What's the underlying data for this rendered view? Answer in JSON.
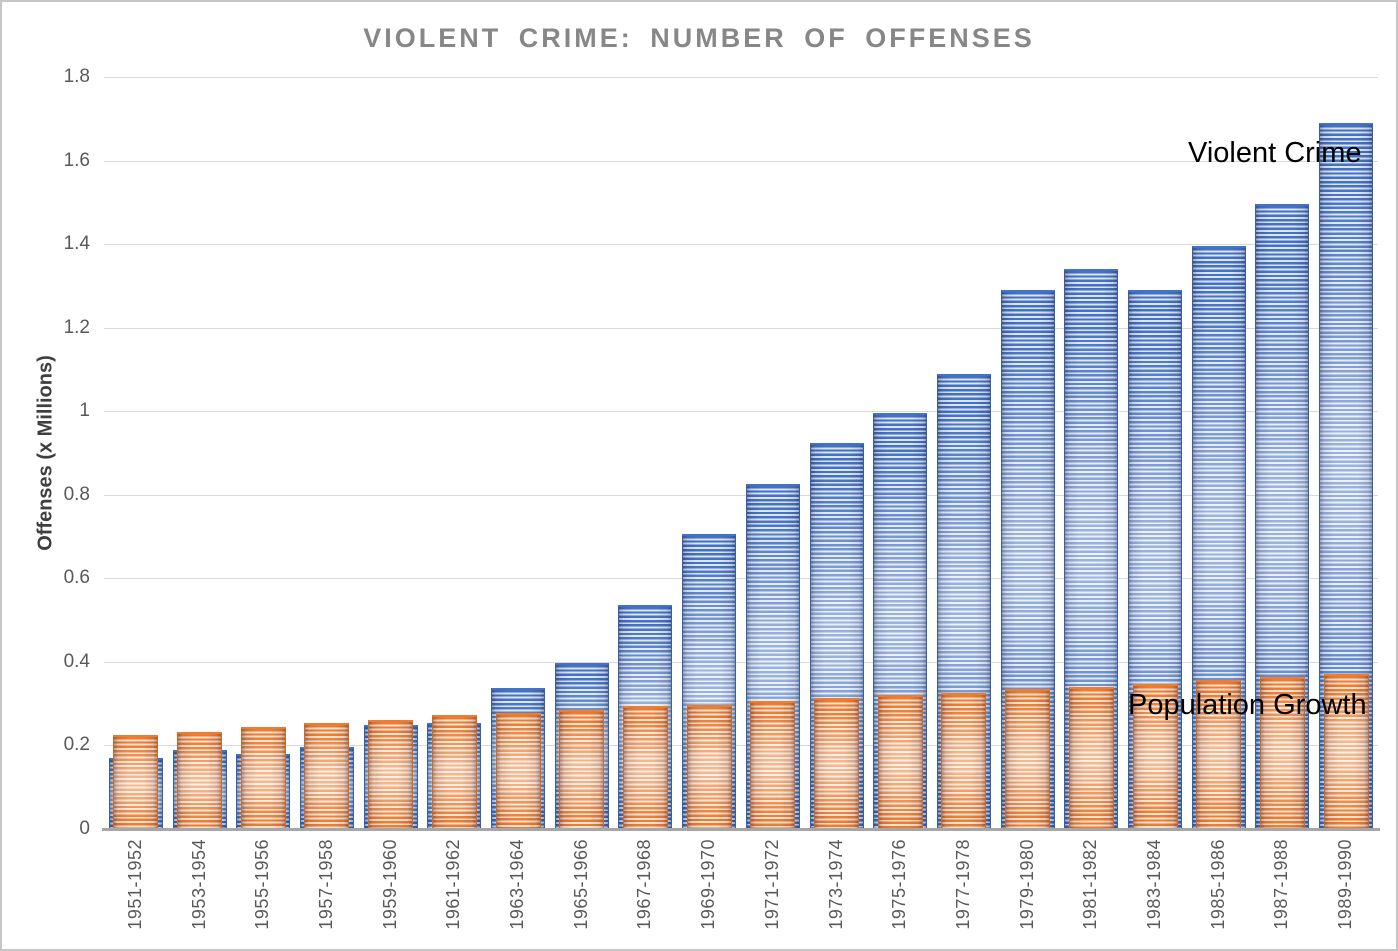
{
  "chart_data": {
    "type": "bar",
    "title": "VIOLENT CRIME: NUMBER OF OFFENSES",
    "ylabel": "Offenses (x Millions)",
    "xlabel": "",
    "categories": [
      "1951-1952",
      "1953-1954",
      "1955-1956",
      "1957-1958",
      "1959-1960",
      "1961-1962",
      "1963-1964",
      "1965-1966",
      "1967-1968",
      "1969-1970",
      "1971-1972",
      "1973-1974",
      "1975-1976",
      "1977-1978",
      "1979-1980",
      "1981-1982",
      "1983-1984",
      "1985-1986",
      "1987-1988",
      "1989-1990"
    ],
    "series": [
      {
        "name": "Violent Crime",
        "color": "#4472C4",
        "stripe_color": "#DCE6F5",
        "values": [
          0.17,
          0.19,
          0.18,
          0.196,
          0.25,
          0.254,
          0.338,
          0.398,
          0.535,
          0.705,
          0.825,
          0.925,
          0.995,
          1.09,
          1.29,
          1.34,
          1.29,
          1.395,
          1.495,
          1.69
        ]
      },
      {
        "name": "Population Growth",
        "color": "#ED7D31",
        "stripe_color": "#FBE3D2",
        "values": [
          0.225,
          0.232,
          0.244,
          0.254,
          0.262,
          0.272,
          0.278,
          0.286,
          0.294,
          0.298,
          0.306,
          0.314,
          0.32,
          0.326,
          0.334,
          0.341,
          0.348,
          0.356,
          0.365,
          0.372
        ]
      }
    ],
    "ylim": [
      0,
      1.8
    ],
    "ytick_step": 0.2,
    "ytick_labels": [
      "0",
      "0.2",
      "0.4",
      "0.6",
      "0.8",
      "1",
      "1.2",
      "1.4",
      "1.6",
      "1.8"
    ],
    "grid": true,
    "bar_layout": "overlapped",
    "legend_position": "none",
    "annotations": [
      {
        "text": "Violent Crime",
        "color": "#000000",
        "near": "top of 1989-1990 bar"
      },
      {
        "text": "Population Growth",
        "color": "#000000",
        "near": "top of orange bars, right side"
      }
    ]
  }
}
